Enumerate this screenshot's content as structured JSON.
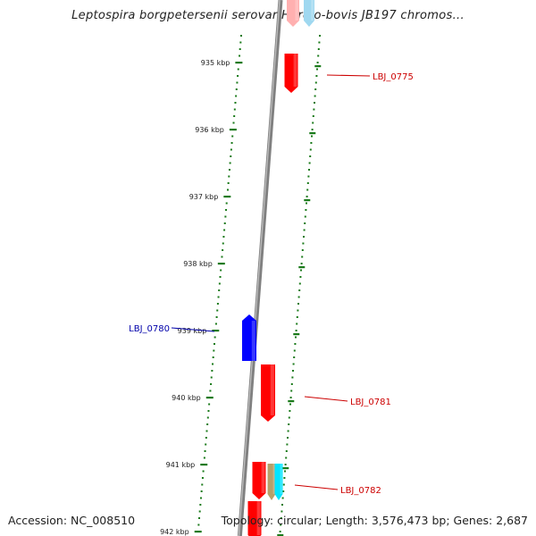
{
  "title": "Leptospira borgpetersenii serovar Hardjo-bovis JB197 chromos...",
  "accession": "Accession: NC_008510",
  "stats": "Topology: circular; Length: 3,576,473 bp; Genes: 2,687",
  "colors": {
    "tick": "#1a7a1a",
    "backbone": "#808080",
    "forward_gene": "#ff0000",
    "reverse_gene": "#0000ff",
    "forward_label": "#cc0000",
    "reverse_label": "#0000aa"
  },
  "kbp_labels": [
    {
      "kbp": 935,
      "text": "935 kbp"
    },
    {
      "kbp": 936,
      "text": "936 kbp"
    },
    {
      "kbp": 937,
      "text": "937 kbp"
    },
    {
      "kbp": 938,
      "text": "938 kbp"
    },
    {
      "kbp": 939,
      "text": "939 kbp"
    },
    {
      "kbp": 940,
      "text": "940 kbp"
    },
    {
      "kbp": 941,
      "text": "941 kbp"
    },
    {
      "kbp": 942,
      "text": "942 kbp"
    }
  ],
  "genes": [
    {
      "label": "LBJ_0775",
      "strand": "forward",
      "color": "#ff0000"
    },
    {
      "label": "LBJ_0780",
      "strand": "reverse",
      "color": "#0000ff"
    },
    {
      "label": "LBJ_0781",
      "strand": "forward",
      "color": "#ff0000"
    },
    {
      "label": "LBJ_0782",
      "strand": "forward",
      "color": "#ff0000"
    }
  ]
}
